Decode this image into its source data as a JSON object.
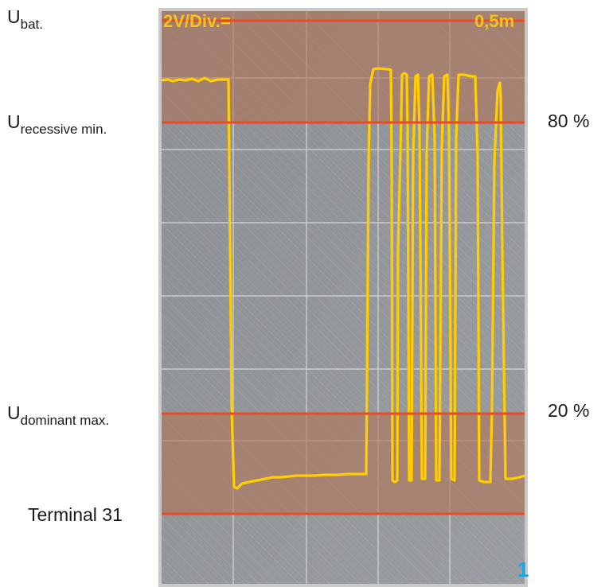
{
  "labels": {
    "u_bat_main": "U",
    "u_bat_sub": "bat.",
    "u_recessive_main": "U",
    "u_recessive_sub": "recessive min.",
    "u_dominant_main": "U",
    "u_dominant_sub": "dominant max.",
    "terminal": "Terminal 31"
  },
  "percent": {
    "upper": "80 %",
    "lower": "20 %"
  },
  "scope": {
    "volts_per_div": "2V/Div.=",
    "time_per_div": "0,5m",
    "channel": "1"
  },
  "colors": {
    "signal_main": "#fdd800",
    "signal_orange": "#f7a91e",
    "threshold_line": "#ea4b25",
    "zone_fill": "#b07558",
    "screen_bg": "#8c8f94",
    "grid": "#d4d6d8",
    "header_text": "#f7c21a",
    "channel_text": "#16a6e0"
  }
}
